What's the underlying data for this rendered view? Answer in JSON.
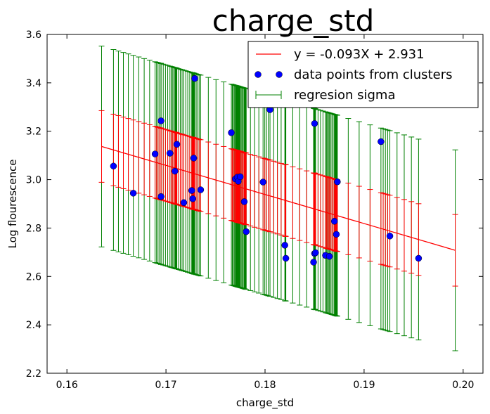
{
  "chart_data": {
    "type": "scatter",
    "title": "charge_std",
    "xlabel": "charge_std",
    "ylabel": "Log flourescence",
    "xlim": [
      0.158,
      0.202
    ],
    "ylim": [
      2.2,
      3.6
    ],
    "x_ticks": [
      "0.16",
      "0.17",
      "0.18",
      "0.19",
      "0.20"
    ],
    "x_tick_values": [
      0.16,
      0.17,
      0.18,
      0.19,
      0.2
    ],
    "y_ticks": [
      "2.2",
      "2.4",
      "2.6",
      "2.8",
      "3.0",
      "3.2",
      "3.4",
      "3.6"
    ],
    "y_tick_values": [
      2.2,
      2.4,
      2.6,
      2.8,
      3.0,
      3.2,
      3.4,
      3.6
    ],
    "grid": false,
    "legend_position": "top-right",
    "legend": [
      "y = -0.093X + 2.931",
      "data points from clusters",
      "regresion sigma"
    ],
    "colors": {
      "line": "#ff0000",
      "points": "#0000ff",
      "sigma": "#008000"
    },
    "regression": {
      "x_range": [
        0.1635,
        0.1992
      ],
      "y_range": [
        3.137,
        2.708
      ]
    },
    "sigma": {
      "green_halfwidth": 0.415,
      "red_halfwidth": 0.148
    },
    "series": [
      {
        "name": "data points from clusters",
        "x": [
          0.1647,
          0.1667,
          0.1689,
          0.1695,
          0.1695,
          0.1704,
          0.1709,
          0.1711,
          0.1718,
          0.1726,
          0.1727,
          0.1728,
          0.1729,
          0.1735,
          0.1766,
          0.177,
          0.1772,
          0.1773,
          0.1775,
          0.1779,
          0.1781,
          0.1798,
          0.1805,
          0.182,
          0.1821,
          0.1849,
          0.185,
          0.185,
          0.1851,
          0.1861,
          0.1865,
          0.187,
          0.1872,
          0.1873,
          0.1917,
          0.1926,
          0.1955
        ],
        "y": [
          3.056,
          2.944,
          3.106,
          3.243,
          2.93,
          3.109,
          3.035,
          3.146,
          2.905,
          2.955,
          2.921,
          3.089,
          3.418,
          2.958,
          3.194,
          3.003,
          3.01,
          2.993,
          3.012,
          2.909,
          2.785,
          2.99,
          3.289,
          2.729,
          2.675,
          2.659,
          2.695,
          3.232,
          2.698,
          2.687,
          2.683,
          2.828,
          2.774,
          2.991,
          3.157,
          2.767,
          2.675
        ]
      }
    ]
  }
}
